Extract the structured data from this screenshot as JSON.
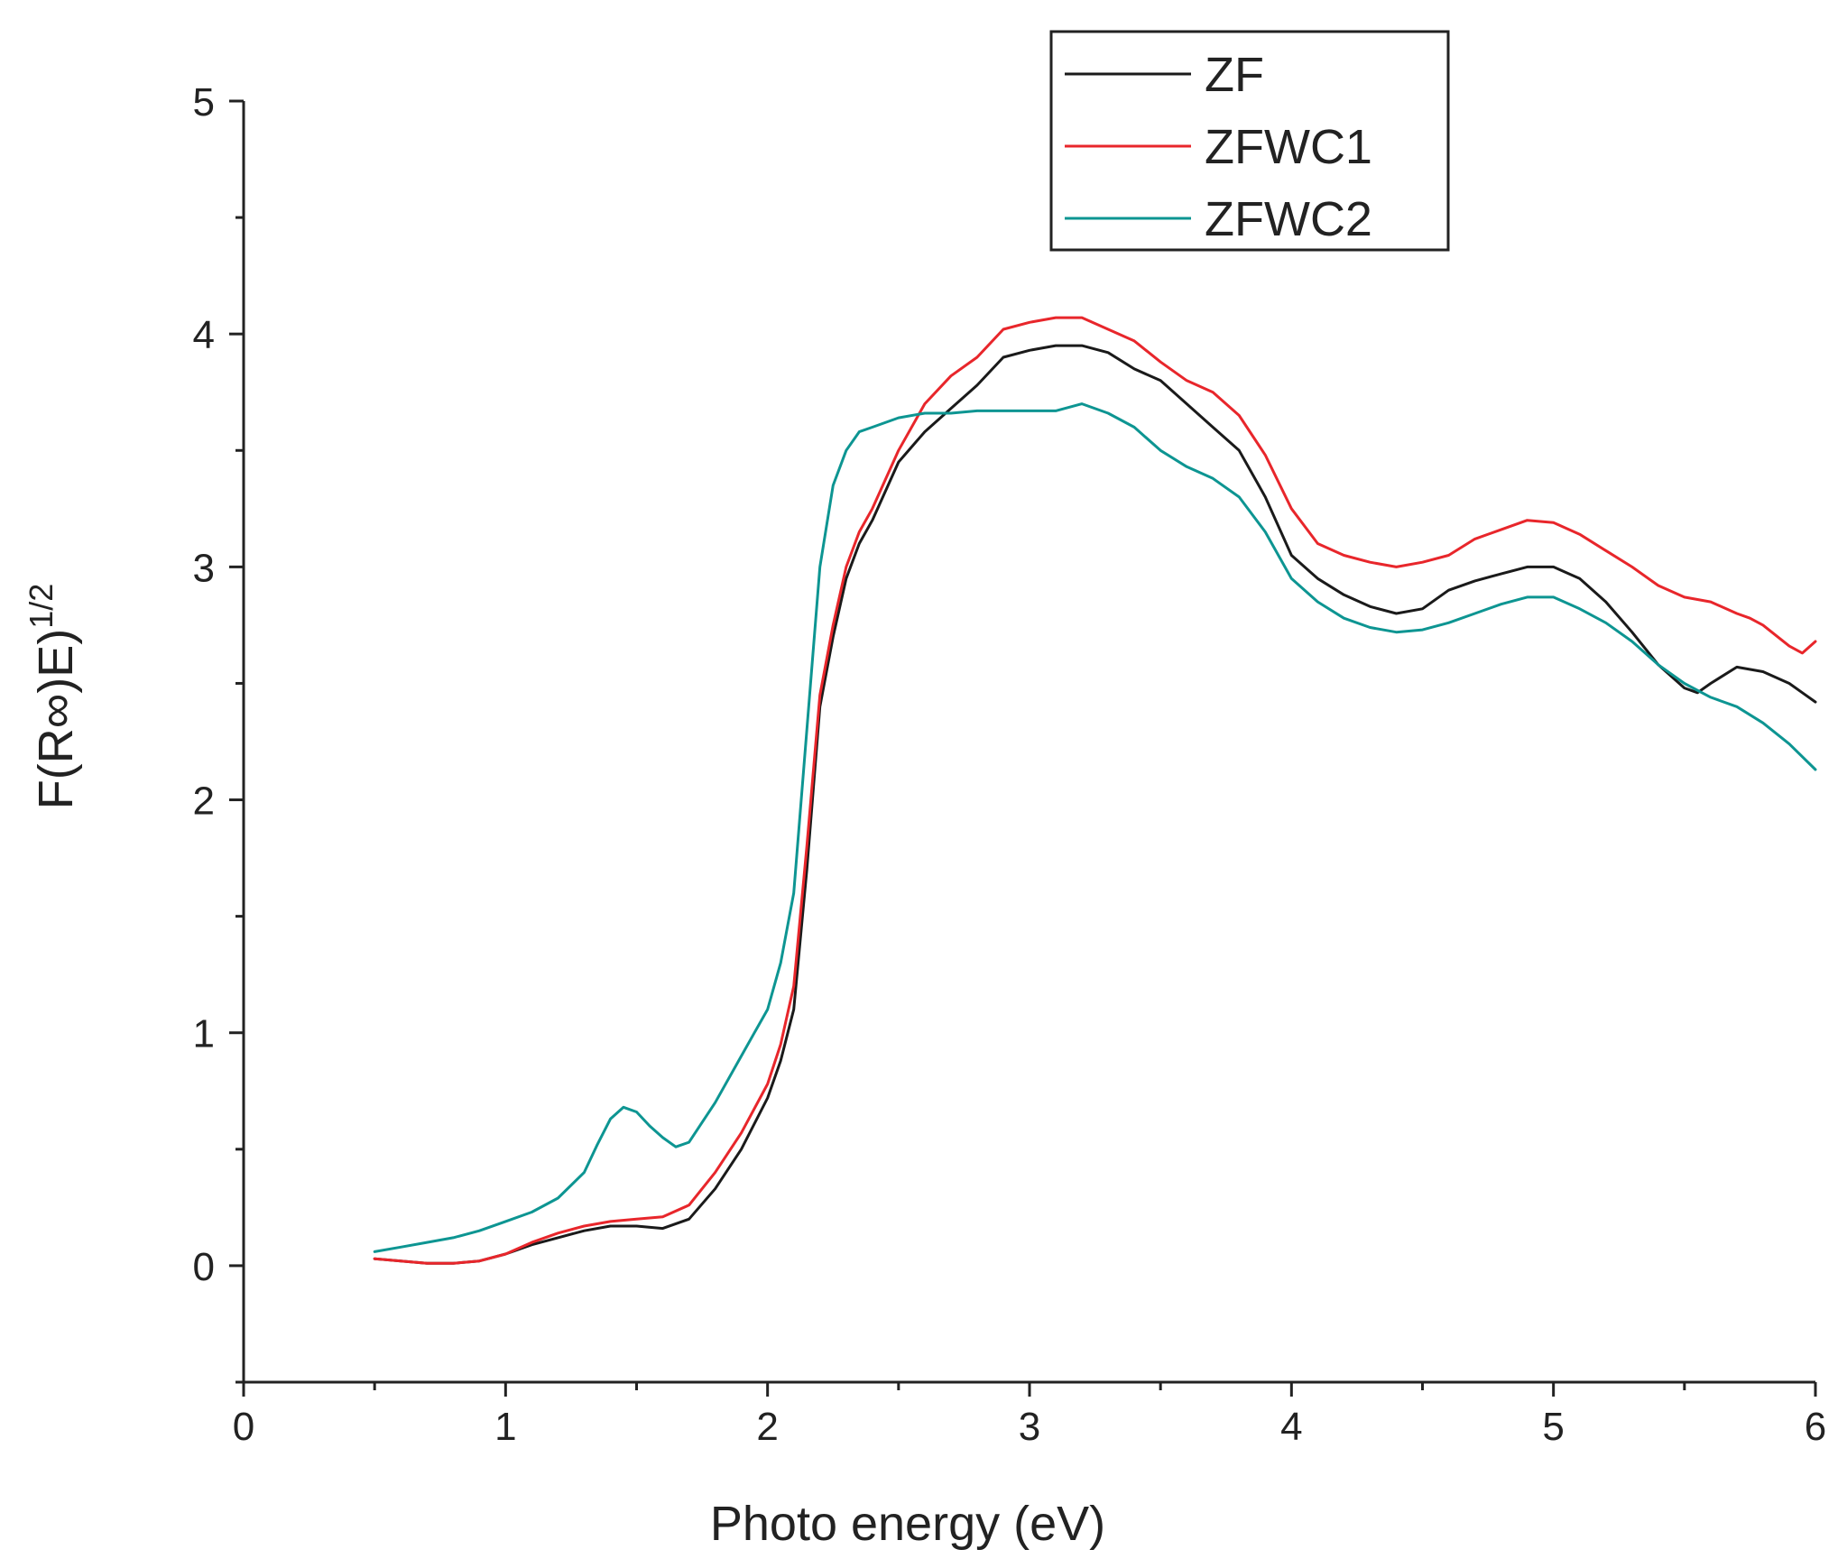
{
  "chart_data": {
    "type": "line",
    "title": "",
    "xlabel": "Photo energy (eV)",
    "ylabel": {
      "main": "F(R∞)E)",
      "superscript": "1/2"
    },
    "xlim": [
      0,
      6
    ],
    "ylim": [
      -0.5,
      5
    ],
    "xticks": [
      "0",
      "1",
      "2",
      "3",
      "4",
      "5",
      "6"
    ],
    "yticks": [
      "0",
      "1",
      "2",
      "3",
      "4",
      "5"
    ],
    "grid": false,
    "legend_position": "top-right",
    "series": [
      {
        "name": "ZF",
        "color": "#1a1a1a",
        "x": [
          0.5,
          0.6,
          0.7,
          0.8,
          0.9,
          1.0,
          1.1,
          1.2,
          1.3,
          1.4,
          1.5,
          1.6,
          1.7,
          1.8,
          1.9,
          2.0,
          2.05,
          2.1,
          2.15,
          2.2,
          2.25,
          2.3,
          2.35,
          2.4,
          2.5,
          2.6,
          2.7,
          2.8,
          2.9,
          3.0,
          3.1,
          3.2,
          3.3,
          3.4,
          3.5,
          3.6,
          3.7,
          3.8,
          3.9,
          4.0,
          4.1,
          4.2,
          4.3,
          4.4,
          4.5,
          4.6,
          4.7,
          4.8,
          4.9,
          5.0,
          5.1,
          5.2,
          5.3,
          5.4,
          5.5,
          5.55,
          5.6,
          5.7,
          5.8,
          5.9,
          5.95,
          6.0
        ],
        "values": [
          0.03,
          0.02,
          0.01,
          0.01,
          0.02,
          0.05,
          0.09,
          0.12,
          0.15,
          0.17,
          0.17,
          0.16,
          0.2,
          0.33,
          0.5,
          0.72,
          0.88,
          1.1,
          1.7,
          2.4,
          2.7,
          2.95,
          3.1,
          3.2,
          3.45,
          3.58,
          3.68,
          3.78,
          3.9,
          3.93,
          3.95,
          3.95,
          3.92,
          3.85,
          3.8,
          3.7,
          3.6,
          3.5,
          3.3,
          3.05,
          2.95,
          2.88,
          2.83,
          2.8,
          2.82,
          2.9,
          2.94,
          2.97,
          3.0,
          3.0,
          2.95,
          2.85,
          2.72,
          2.58,
          2.48,
          2.46,
          2.5,
          2.57,
          2.55,
          2.5,
          2.46,
          2.42
        ]
      },
      {
        "name": "ZFWC1",
        "color": "#e8262b",
        "x": [
          0.5,
          0.6,
          0.7,
          0.8,
          0.9,
          1.0,
          1.1,
          1.2,
          1.3,
          1.4,
          1.5,
          1.6,
          1.7,
          1.8,
          1.9,
          2.0,
          2.05,
          2.1,
          2.15,
          2.2,
          2.25,
          2.3,
          2.35,
          2.4,
          2.5,
          2.6,
          2.7,
          2.8,
          2.9,
          3.0,
          3.1,
          3.2,
          3.3,
          3.4,
          3.5,
          3.6,
          3.7,
          3.8,
          3.9,
          4.0,
          4.1,
          4.2,
          4.3,
          4.4,
          4.5,
          4.6,
          4.7,
          4.8,
          4.9,
          5.0,
          5.1,
          5.2,
          5.3,
          5.4,
          5.5,
          5.6,
          5.7,
          5.75,
          5.8,
          5.9,
          5.95,
          6.0
        ],
        "values": [
          0.03,
          0.02,
          0.01,
          0.01,
          0.02,
          0.05,
          0.1,
          0.14,
          0.17,
          0.19,
          0.2,
          0.21,
          0.26,
          0.4,
          0.57,
          0.78,
          0.95,
          1.2,
          1.8,
          2.45,
          2.75,
          3.0,
          3.15,
          3.25,
          3.5,
          3.7,
          3.82,
          3.9,
          4.02,
          4.05,
          4.07,
          4.07,
          4.02,
          3.97,
          3.88,
          3.8,
          3.75,
          3.65,
          3.48,
          3.25,
          3.1,
          3.05,
          3.02,
          3.0,
          3.02,
          3.05,
          3.12,
          3.16,
          3.2,
          3.19,
          3.14,
          3.07,
          3.0,
          2.92,
          2.87,
          2.85,
          2.8,
          2.78,
          2.75,
          2.66,
          2.63,
          2.68
        ]
      },
      {
        "name": "ZFWC2",
        "color": "#0d9592",
        "x": [
          0.5,
          0.6,
          0.7,
          0.8,
          0.9,
          1.0,
          1.1,
          1.2,
          1.3,
          1.35,
          1.4,
          1.45,
          1.5,
          1.55,
          1.6,
          1.65,
          1.7,
          1.8,
          1.9,
          1.95,
          2.0,
          2.05,
          2.1,
          2.15,
          2.2,
          2.25,
          2.3,
          2.35,
          2.4,
          2.5,
          2.6,
          2.7,
          2.8,
          2.9,
          3.0,
          3.1,
          3.2,
          3.3,
          3.4,
          3.5,
          3.6,
          3.7,
          3.8,
          3.9,
          4.0,
          4.1,
          4.2,
          4.3,
          4.4,
          4.5,
          4.6,
          4.7,
          4.8,
          4.9,
          5.0,
          5.1,
          5.2,
          5.3,
          5.4,
          5.5,
          5.6,
          5.7,
          5.8,
          5.9,
          6.0
        ],
        "values": [
          0.06,
          0.08,
          0.1,
          0.12,
          0.15,
          0.19,
          0.23,
          0.29,
          0.4,
          0.52,
          0.63,
          0.68,
          0.66,
          0.6,
          0.55,
          0.51,
          0.53,
          0.7,
          0.9,
          1.0,
          1.1,
          1.3,
          1.6,
          2.3,
          3.0,
          3.35,
          3.5,
          3.58,
          3.6,
          3.64,
          3.66,
          3.66,
          3.67,
          3.67,
          3.67,
          3.67,
          3.7,
          3.66,
          3.6,
          3.5,
          3.43,
          3.38,
          3.3,
          3.15,
          2.95,
          2.85,
          2.78,
          2.74,
          2.72,
          2.73,
          2.76,
          2.8,
          2.84,
          2.87,
          2.87,
          2.82,
          2.76,
          2.68,
          2.58,
          2.5,
          2.44,
          2.4,
          2.33,
          2.24,
          2.13
        ]
      }
    ]
  }
}
